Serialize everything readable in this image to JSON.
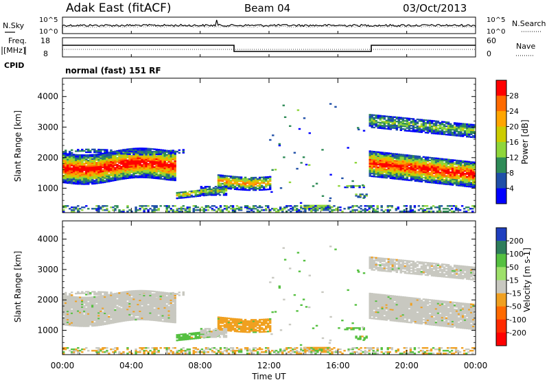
{
  "header": {
    "site": "Adak East (fitACF)",
    "beam": "Beam 04",
    "date": "03/Oct/2013"
  },
  "panels": {
    "nsky_label": "N.Sky",
    "nsearch_label": "N.Search",
    "freq_label_1": "Freq.",
    "freq_label_2": "[MHz]",
    "nave_label": "Nave",
    "cpid_label": "CPID",
    "cpid_text": "normal (fast) 151 RF",
    "noise_ticks_top": "10^5",
    "noise_ticks_bottom": "10^0",
    "freq_ticks": [
      "18",
      "8"
    ],
    "nave_ticks": [
      "60",
      "0"
    ]
  },
  "chart_data": [
    {
      "type": "heatmap",
      "name": "power",
      "ylabel": "Slant Range [km]",
      "colorbar_label": "Power [dB]",
      "colorbar_ticks": [
        "28",
        "24",
        "20",
        "16",
        "12",
        "8",
        "4"
      ],
      "colorbar_colors": [
        "#ff0000",
        "#ff6a00",
        "#ffa500",
        "#cccc00",
        "#8fd63a",
        "#2e8b57",
        "#1f4fa8",
        "#0000ff"
      ],
      "y_ticks": [
        "4000",
        "3000",
        "2000",
        "1000"
      ],
      "ylim": [
        200,
        4600
      ],
      "xlim_hours": [
        0,
        24
      ],
      "regions": [
        {
          "x": [
            0.0,
            6.5
          ],
          "y": [
            1200,
            2200
          ],
          "level": "strong"
        },
        {
          "x": [
            6.5,
            12.0
          ],
          "y": [
            700,
            1500
          ],
          "level": "medium"
        },
        {
          "x": [
            14.0,
            15.5
          ],
          "y": [
            300,
            500
          ],
          "level": "medium"
        },
        {
          "x": [
            17.8,
            24.0
          ],
          "y": [
            1200,
            2200
          ],
          "level": "strong"
        },
        {
          "x": [
            17.8,
            24.0
          ],
          "y": [
            2700,
            3500
          ],
          "level": "weak"
        }
      ]
    },
    {
      "type": "heatmap",
      "name": "velocity",
      "ylabel": "Slant Range [km]",
      "colorbar_label": "Velocity [m s-1]",
      "colorbar_ticks": [
        "200",
        "100",
        "50",
        "15",
        "-15",
        "-50",
        "-100",
        "-200"
      ],
      "colorbar_colors": [
        "#1f3fbf",
        "#2e7d5b",
        "#55c040",
        "#9ee06a",
        "#c8c8c0",
        "#f0a020",
        "#ff6a00",
        "#ff2a00",
        "#ff0000"
      ],
      "y_ticks": [
        "4000",
        "3000",
        "2000",
        "1000"
      ],
      "ylim": [
        200,
        4600
      ],
      "xlim_hours": [
        0,
        24
      ],
      "regions": [
        {
          "x": [
            0.0,
            6.5
          ],
          "y": [
            1200,
            2200
          ],
          "velocity": "~0"
        },
        {
          "x": [
            6.5,
            12.0
          ],
          "y": [
            700,
            1500
          ],
          "velocity": "mixed"
        },
        {
          "x": [
            17.8,
            24.0
          ],
          "y": [
            1200,
            2200
          ],
          "velocity": "~0"
        },
        {
          "x": [
            17.8,
            24.0
          ],
          "y": [
            2700,
            3500
          ],
          "velocity": "~0"
        }
      ]
    }
  ],
  "x_axis": {
    "label": "Time UT",
    "ticks": [
      "00:00",
      "04:00",
      "08:00",
      "12:00",
      "16:00",
      "20:00",
      "00:00"
    ]
  }
}
